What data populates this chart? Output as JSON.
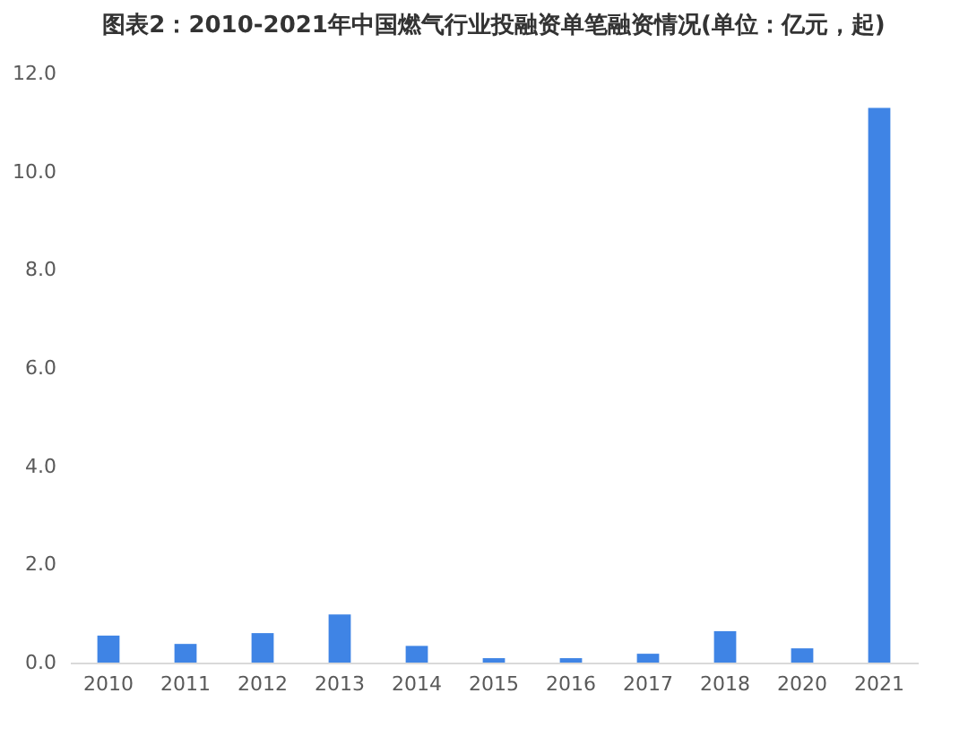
{
  "chart_data": {
    "type": "bar",
    "title": "图表2：2010-2021年中国燃气行业投融资单笔融资情况(单位：亿元，起)",
    "categories": [
      "2010",
      "2011",
      "2012",
      "2013",
      "2014",
      "2015",
      "2016",
      "2017",
      "2018",
      "2020",
      "2021"
    ],
    "values": [
      0.55,
      0.38,
      0.6,
      0.98,
      0.34,
      0.09,
      0.09,
      0.18,
      0.64,
      0.29,
      11.3
    ],
    "color": "#3f84e5",
    "ylim": [
      0,
      12
    ],
    "yticks": [
      {
        "value": 0,
        "label": "0.0"
      },
      {
        "value": 2,
        "label": "2.0"
      },
      {
        "value": 4,
        "label": "4.0"
      },
      {
        "value": 6,
        "label": "6.0"
      },
      {
        "value": 8,
        "label": "8.0"
      },
      {
        "value": 10,
        "label": "10.0"
      },
      {
        "value": 12,
        "label": "12.0"
      }
    ],
    "grid": false
  }
}
